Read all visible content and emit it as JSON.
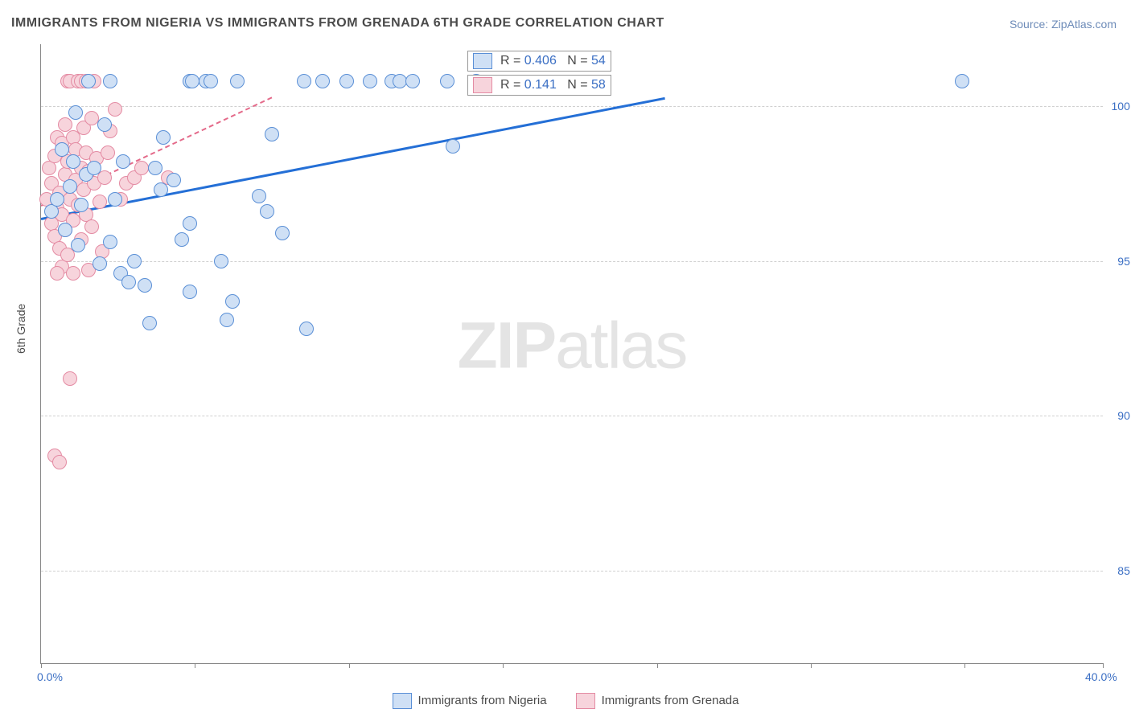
{
  "title": "IMMIGRANTS FROM NIGERIA VS IMMIGRANTS FROM GRENADA 6TH GRADE CORRELATION CHART",
  "source_prefix": "Source: ",
  "source_name": "ZipAtlas.com",
  "ylabel": "6th Grade",
  "watermark_a": "ZIP",
  "watermark_b": "atlas",
  "chart": {
    "type": "scatter",
    "background_color": "#ffffff",
    "grid_color": "#d0d0d0",
    "axis_color": "#888888",
    "xlim": [
      0,
      40
    ],
    "ylim": [
      82,
      102
    ],
    "xticks": [
      0,
      5.8,
      11.6,
      17.4,
      23.2,
      29.0,
      34.8,
      40
    ],
    "xtick_labels": {
      "0": "0.0%",
      "40": "40.0%"
    },
    "yticks": [
      85,
      90,
      95,
      100
    ],
    "ytick_labels": {
      "85": "85.0%",
      "90": "90.0%",
      "95": "95.0%",
      "100": "100.0%"
    },
    "marker_radius": 9,
    "marker_stroke": 1.5,
    "label_fontsize": 14,
    "label_color": "#3b6fc4"
  },
  "series": [
    {
      "name": "Immigrants from Nigeria",
      "fill": "#cfe0f5",
      "stroke": "#5a8fd6",
      "trend": {
        "x1": 0,
        "y1": 96.4,
        "x2": 23.5,
        "y2": 100.3,
        "color": "#246fd6",
        "width": 3,
        "dash": false
      },
      "R": "0.406",
      "N": "54",
      "points": [
        [
          0.4,
          96.6
        ],
        [
          0.6,
          97.0
        ],
        [
          0.9,
          96.0
        ],
        [
          0.8,
          98.6
        ],
        [
          1.1,
          97.4
        ],
        [
          1.2,
          98.2
        ],
        [
          1.3,
          99.8
        ],
        [
          1.4,
          95.5
        ],
        [
          1.5,
          96.8
        ],
        [
          1.8,
          100.8
        ],
        [
          1.7,
          97.8
        ],
        [
          2.0,
          98.0
        ],
        [
          2.2,
          94.9
        ],
        [
          2.4,
          99.4
        ],
        [
          2.6,
          95.6
        ],
        [
          2.6,
          100.8
        ],
        [
          2.8,
          97.0
        ],
        [
          3.0,
          94.6
        ],
        [
          3.1,
          98.2
        ],
        [
          3.3,
          94.3
        ],
        [
          3.5,
          95.0
        ],
        [
          3.9,
          94.2
        ],
        [
          4.1,
          93.0
        ],
        [
          4.3,
          98.0
        ],
        [
          4.5,
          97.3
        ],
        [
          4.6,
          99.0
        ],
        [
          5.0,
          97.6
        ],
        [
          5.3,
          95.7
        ],
        [
          5.6,
          96.2
        ],
        [
          5.6,
          94.0
        ],
        [
          5.6,
          100.8
        ],
        [
          5.7,
          100.8
        ],
        [
          6.2,
          100.8
        ],
        [
          6.4,
          100.8
        ],
        [
          6.8,
          95.0
        ],
        [
          7.0,
          93.1
        ],
        [
          7.2,
          93.7
        ],
        [
          7.4,
          100.8
        ],
        [
          8.2,
          97.1
        ],
        [
          8.5,
          96.6
        ],
        [
          8.7,
          99.1
        ],
        [
          9.1,
          95.9
        ],
        [
          9.9,
          100.8
        ],
        [
          10.0,
          92.8
        ],
        [
          10.6,
          100.8
        ],
        [
          11.5,
          100.8
        ],
        [
          12.4,
          100.8
        ],
        [
          13.2,
          100.8
        ],
        [
          13.5,
          100.8
        ],
        [
          14.0,
          100.8
        ],
        [
          15.3,
          100.8
        ],
        [
          15.5,
          98.7
        ],
        [
          16.4,
          100.8
        ],
        [
          34.7,
          100.8
        ]
      ]
    },
    {
      "name": "Immigrants from Grenada",
      "fill": "#f7d4dc",
      "stroke": "#e48ba3",
      "trend": {
        "x1": 0,
        "y1": 96.8,
        "x2": 8.7,
        "y2": 100.3,
        "color": "#e46a8a",
        "width": 2,
        "dash": true
      },
      "R": " 0.141",
      "N": "58",
      "points": [
        [
          0.2,
          97.0
        ],
        [
          0.3,
          98.0
        ],
        [
          0.4,
          96.2
        ],
        [
          0.4,
          97.5
        ],
        [
          0.5,
          95.8
        ],
        [
          0.5,
          98.4
        ],
        [
          0.6,
          96.7
        ],
        [
          0.6,
          99.0
        ],
        [
          0.7,
          97.2
        ],
        [
          0.7,
          95.4
        ],
        [
          0.8,
          96.5
        ],
        [
          0.8,
          98.8
        ],
        [
          0.8,
          94.8
        ],
        [
          0.9,
          97.8
        ],
        [
          0.9,
          99.4
        ],
        [
          0.9,
          96.0
        ],
        [
          1.0,
          98.2
        ],
        [
          1.0,
          100.8
        ],
        [
          1.0,
          95.2
        ],
        [
          1.1,
          97.0
        ],
        [
          1.1,
          100.8
        ],
        [
          1.2,
          96.3
        ],
        [
          1.2,
          99.0
        ],
        [
          1.2,
          94.6
        ],
        [
          1.3,
          97.6
        ],
        [
          1.3,
          98.6
        ],
        [
          1.4,
          96.8
        ],
        [
          1.4,
          100.8
        ],
        [
          1.5,
          98.0
        ],
        [
          1.5,
          95.7
        ],
        [
          1.5,
          100.8
        ],
        [
          1.6,
          99.3
        ],
        [
          1.6,
          97.3
        ],
        [
          1.7,
          96.5
        ],
        [
          1.7,
          98.5
        ],
        [
          1.7,
          100.8
        ],
        [
          1.8,
          97.9
        ],
        [
          1.8,
          94.7
        ],
        [
          1.9,
          99.6
        ],
        [
          1.9,
          96.1
        ],
        [
          2.0,
          97.5
        ],
        [
          2.0,
          100.8
        ],
        [
          2.1,
          98.3
        ],
        [
          2.2,
          96.9
        ],
        [
          2.3,
          95.3
        ],
        [
          2.4,
          97.7
        ],
        [
          2.5,
          98.5
        ],
        [
          2.6,
          99.2
        ],
        [
          2.8,
          99.9
        ],
        [
          3.0,
          97.0
        ],
        [
          3.2,
          97.5
        ],
        [
          3.5,
          97.7
        ],
        [
          3.8,
          98.0
        ],
        [
          4.8,
          97.7
        ],
        [
          1.1,
          91.2
        ],
        [
          0.5,
          88.7
        ],
        [
          0.7,
          88.5
        ],
        [
          0.6,
          94.6
        ]
      ]
    }
  ],
  "stat_legend": {
    "R_label": "R =",
    "N_label": "N =",
    "text_color_stat": "#3b6fc4",
    "text_color_label": "#4a4a4a"
  },
  "bottom_legend": {
    "items": [
      {
        "label": "Immigrants from Nigeria",
        "fill": "#cfe0f5",
        "stroke": "#5a8fd6"
      },
      {
        "label": "Immigrants from Grenada",
        "fill": "#f7d4dc",
        "stroke": "#e48ba3"
      }
    ]
  }
}
